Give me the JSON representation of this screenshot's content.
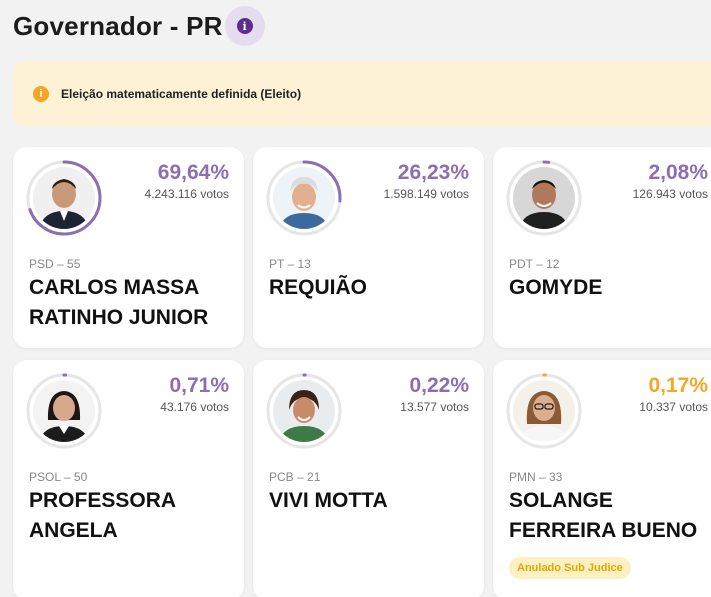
{
  "header": {
    "title": "Governador - PR",
    "info_icon": "info-icon"
  },
  "banner": {
    "icon": "warning-info-icon",
    "message": "Eleição matematicamente definida (Eleito)"
  },
  "colors": {
    "accent": "#8a6fb3",
    "ring": "#8a6fb3",
    "highlight_pct": "#f5a623",
    "banner_bg": "#fdf1d6"
  },
  "candidates": [
    {
      "pct": "69,64%",
      "pct_value": 69.64,
      "votes": "4.243.116 votos",
      "party": "PSD – 55",
      "name_line1": "CARLOS MASSA",
      "name_line2": "RATINHO JUNIOR"
    },
    {
      "pct": "26,23%",
      "pct_value": 26.23,
      "votes": "1.598.149 votos",
      "party": "PT – 13",
      "name_line1": "REQUIÃO",
      "name_line2": ""
    },
    {
      "pct": "2,08%",
      "pct_value": 2.08,
      "votes": "126.943 votos",
      "party": "PDT – 12",
      "name_line1": "GOMYDE",
      "name_line2": ""
    },
    {
      "pct": "0,71%",
      "pct_value": 0.71,
      "votes": "43.176 votos",
      "party": "PSOL – 50",
      "name_line1": "PROFESSORA",
      "name_line2": "ANGELA"
    },
    {
      "pct": "0,22%",
      "pct_value": 0.22,
      "votes": "13.577 votos",
      "party": "PCB – 21",
      "name_line1": "VIVI MOTTA",
      "name_line2": ""
    },
    {
      "pct": "0,17%",
      "pct_value": 0.17,
      "votes": "10.337 votos",
      "party": "PMN – 33",
      "name_line1": "SOLANGE",
      "name_line2": "FERREIRA BUENO",
      "badge": "Anulado Sub Judice"
    }
  ]
}
